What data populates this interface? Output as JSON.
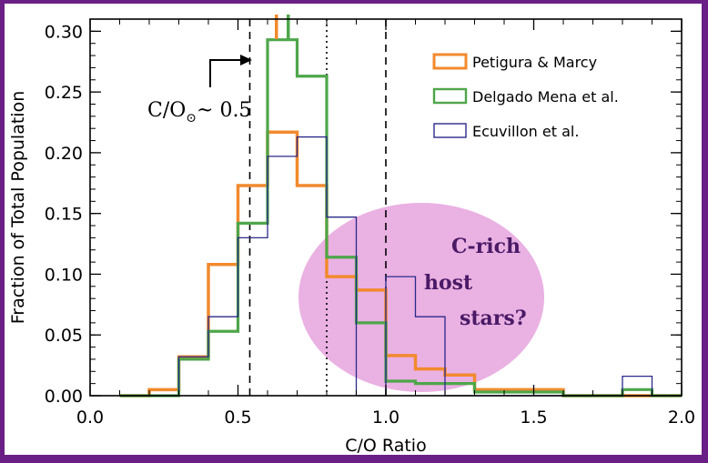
{
  "chart_data": {
    "type": "bar",
    "style": "step-histogram",
    "xlabel": "C/O Ratio",
    "ylabel": "Fraction of Total Population",
    "xlim": [
      0.0,
      2.0
    ],
    "ylim": [
      0.0,
      0.31
    ],
    "x_ticks": [
      "0.0",
      "0.5",
      "1.0",
      "1.5",
      "2.0"
    ],
    "y_ticks": [
      "0.00",
      "0.05",
      "0.10",
      "0.15",
      "0.20",
      "0.25",
      "0.30"
    ],
    "bin_edges": [
      0.1,
      0.2,
      0.3,
      0.4,
      0.5,
      0.6,
      0.7,
      0.8,
      0.9,
      1.0,
      1.1,
      1.2,
      1.3,
      1.4,
      1.5,
      1.6,
      1.7,
      1.8,
      1.9,
      2.0
    ],
    "legend_position": "top-right",
    "series": [
      {
        "name": "Petigura & Marcy",
        "color": "#f28a2e",
        "values": [
          0.0,
          0.005,
          0.032,
          0.108,
          0.173,
          0.217,
          0.173,
          0.098,
          0.087,
          0.033,
          0.022,
          0.017,
          0.005,
          0.005,
          0.005,
          0.0,
          0.0,
          0.0,
          0.0
        ]
      },
      {
        "name": "Delgado Mena et al.",
        "color": "#4ea64a",
        "values": [
          0.0,
          0.0,
          0.03,
          0.053,
          0.142,
          0.293,
          0.263,
          0.114,
          0.06,
          0.012,
          0.01,
          0.01,
          0.003,
          0.003,
          0.003,
          0.0,
          0.0,
          0.005,
          0.0
        ]
      },
      {
        "name": "Ecuvillon et al.",
        "color": "#2a2a8a",
        "values": [
          0.0,
          0.0,
          0.032,
          0.065,
          0.13,
          0.197,
          0.213,
          0.147,
          0.0,
          0.098,
          0.065,
          0.0,
          0.0,
          0.0,
          0.0,
          0.0,
          0.0,
          0.016,
          0.0
        ]
      }
    ],
    "vertical_lines": [
      {
        "x": 0.54,
        "style": "dashed"
      },
      {
        "x": 0.8,
        "style": "dotted"
      },
      {
        "x": 1.0,
        "style": "dashed"
      }
    ],
    "top_markers": [
      {
        "x": 0.63,
        "color": "#f28a2e"
      },
      {
        "x": 0.67,
        "color": "#4ea64a"
      }
    ],
    "annotations": {
      "solar_label": "C/O",
      "solar_subscript": "⊙",
      "solar_value": "~ 0.5",
      "c_rich_lines": [
        "C-rich",
        "host",
        "stars?"
      ]
    }
  }
}
